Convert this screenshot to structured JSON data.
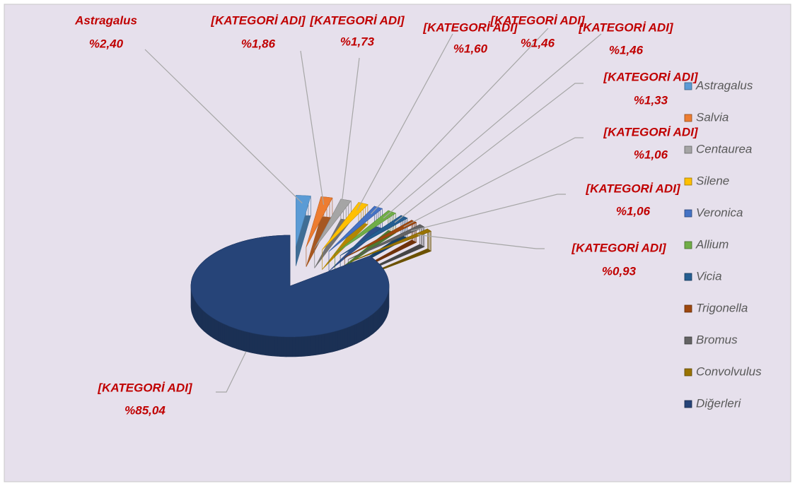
{
  "chart_data": {
    "type": "pie",
    "categories": [
      "Astragalus",
      "Salvia",
      "Centaurea",
      "Silene",
      "Veronica",
      "Allium",
      "Vicia",
      "Trigonella",
      "Bromus",
      "Convolvulus",
      "Diğerleri"
    ],
    "values": [
      2.4,
      1.86,
      1.73,
      1.6,
      1.46,
      1.46,
      1.33,
      1.06,
      1.06,
      0.93,
      85.04
    ],
    "value_labels": [
      "%2,40",
      "%1,86",
      "%1,73",
      "%1,60",
      "%1,46",
      "%1,46",
      "%1,33",
      "%1,06",
      "%1,06",
      "%0,93",
      "%85,04"
    ],
    "label_names": [
      "Astragalus",
      "[KATEGORİ ADI]",
      "[KATEGORİ ADI]",
      "[KATEGORİ ADI]",
      "[KATEGORİ ADI]",
      "[KATEGORİ ADI]",
      "[KATEGORİ ADI]",
      "[KATEGORİ ADI]",
      "[KATEGORİ ADI]",
      "[KATEGORİ ADI]",
      "[KATEGORİ ADI]"
    ],
    "colors": [
      "#5b9bd5",
      "#ed7d31",
      "#a5a5a5",
      "#ffc000",
      "#4472c4",
      "#70ad47",
      "#255e91",
      "#9e480e",
      "#636363",
      "#997300",
      "#264478"
    ],
    "legend": "right"
  }
}
